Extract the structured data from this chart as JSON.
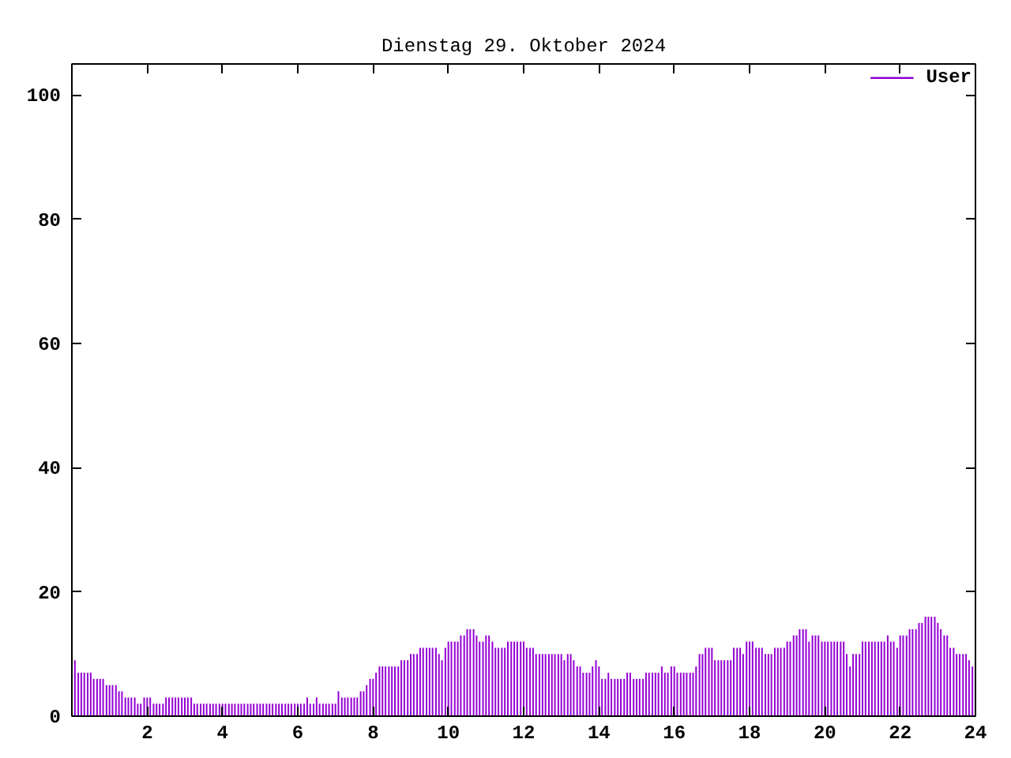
{
  "chart_data": {
    "type": "bar",
    "title": "Dienstag 29. Oktober 2024",
    "x": [
      0.08,
      0.17,
      0.25,
      0.33,
      0.42,
      0.5,
      0.58,
      0.67,
      0.75,
      0.83,
      0.92,
      1,
      1.08,
      1.17,
      1.25,
      1.33,
      1.42,
      1.5,
      1.58,
      1.67,
      1.75,
      1.83,
      1.92,
      2,
      2.08,
      2.17,
      2.25,
      2.33,
      2.42,
      2.5,
      2.58,
      2.67,
      2.75,
      2.83,
      2.92,
      3,
      3.08,
      3.17,
      3.25,
      3.33,
      3.42,
      3.5,
      3.58,
      3.67,
      3.75,
      3.83,
      3.92,
      4,
      4.08,
      4.17,
      4.25,
      4.33,
      4.42,
      4.5,
      4.58,
      4.67,
      4.75,
      4.83,
      4.92,
      5,
      5.08,
      5.17,
      5.25,
      5.33,
      5.42,
      5.5,
      5.58,
      5.67,
      5.75,
      5.83,
      5.92,
      6,
      6.08,
      6.17,
      6.25,
      6.33,
      6.42,
      6.5,
      6.58,
      6.67,
      6.75,
      6.83,
      6.92,
      7,
      7.08,
      7.17,
      7.25,
      7.33,
      7.42,
      7.5,
      7.58,
      7.67,
      7.75,
      7.83,
      7.92,
      8,
      8.08,
      8.17,
      8.25,
      8.33,
      8.42,
      8.5,
      8.58,
      8.67,
      8.75,
      8.83,
      8.92,
      9,
      9.08,
      9.17,
      9.25,
      9.33,
      9.42,
      9.5,
      9.58,
      9.67,
      9.75,
      9.83,
      9.92,
      10,
      10.08,
      10.17,
      10.25,
      10.33,
      10.42,
      10.5,
      10.58,
      10.67,
      10.75,
      10.83,
      10.92,
      11,
      11.08,
      11.17,
      11.25,
      11.33,
      11.42,
      11.5,
      11.58,
      11.67,
      11.75,
      11.83,
      11.92,
      12,
      12.08,
      12.17,
      12.25,
      12.33,
      12.42,
      12.5,
      12.58,
      12.67,
      12.75,
      12.83,
      12.92,
      13,
      13.08,
      13.17,
      13.25,
      13.33,
      13.42,
      13.5,
      13.58,
      13.67,
      13.75,
      13.83,
      13.92,
      14,
      14.08,
      14.17,
      14.25,
      14.33,
      14.42,
      14.5,
      14.58,
      14.67,
      14.75,
      14.83,
      14.92,
      15,
      15.08,
      15.17,
      15.25,
      15.33,
      15.42,
      15.5,
      15.58,
      15.67,
      15.75,
      15.83,
      15.92,
      16,
      16.08,
      16.17,
      16.25,
      16.33,
      16.42,
      16.5,
      16.58,
      16.67,
      16.75,
      16.83,
      16.92,
      17,
      17.08,
      17.17,
      17.25,
      17.33,
      17.42,
      17.5,
      17.58,
      17.67,
      17.75,
      17.83,
      17.92,
      18,
      18.08,
      18.17,
      18.25,
      18.33,
      18.42,
      18.5,
      18.58,
      18.67,
      18.75,
      18.83,
      18.92,
      19,
      19.08,
      19.17,
      19.25,
      19.33,
      19.42,
      19.5,
      19.58,
      19.67,
      19.75,
      19.83,
      19.92,
      20,
      20.08,
      20.17,
      20.25,
      20.33,
      20.42,
      20.5,
      20.58,
      20.67,
      20.75,
      20.83,
      20.92,
      21,
      21.08,
      21.17,
      21.25,
      21.33,
      21.42,
      21.5,
      21.58,
      21.67,
      21.75,
      21.83,
      21.92,
      22,
      22.08,
      22.17,
      22.25,
      22.33,
      22.42,
      22.5,
      22.58,
      22.67,
      22.75,
      22.83,
      22.92,
      23,
      23.08,
      23.17,
      23.25,
      23.33,
      23.42,
      23.5,
      23.58,
      23.67,
      23.75,
      23.83,
      23.92
    ],
    "series": [
      {
        "name": "User",
        "color": "#9400d3",
        "values": [
          9,
          7,
          7,
          7,
          7,
          7,
          6,
          6,
          6,
          6,
          5,
          5,
          5,
          5,
          4,
          4,
          3,
          3,
          3,
          3,
          2,
          2,
          3,
          3,
          3,
          2,
          2,
          2,
          2,
          3,
          3,
          3,
          3,
          3,
          3,
          3,
          3,
          3,
          2,
          2,
          2,
          2,
          2,
          2,
          2,
          2,
          2,
          2,
          2,
          2,
          2,
          2,
          2,
          2,
          2,
          2,
          2,
          2,
          2,
          2,
          2,
          2,
          2,
          2,
          2,
          2,
          2,
          2,
          2,
          2,
          2,
          2,
          2,
          2,
          3,
          2,
          2,
          3,
          2,
          2,
          2,
          2,
          2,
          2,
          4,
          3,
          3,
          3,
          3,
          3,
          3,
          4,
          4,
          5,
          6,
          6,
          7,
          8,
          8,
          8,
          8,
          8,
          8,
          8,
          9,
          9,
          9,
          10,
          10,
          10,
          11,
          11,
          11,
          11,
          11,
          11,
          10,
          9,
          11,
          12,
          12,
          12,
          12,
          13,
          13,
          14,
          14,
          14,
          13,
          12,
          12,
          13,
          13,
          12,
          11,
          11,
          11,
          11,
          12,
          12,
          12,
          12,
          12,
          12,
          11,
          11,
          11,
          10,
          10,
          10,
          10,
          10,
          10,
          10,
          10,
          10,
          9,
          10,
          10,
          9,
          8,
          8,
          7,
          7,
          7,
          8,
          9,
          8,
          6,
          6,
          7,
          6,
          6,
          6,
          6,
          6,
          7,
          7,
          6,
          6,
          6,
          6,
          7,
          7,
          7,
          7,
          7,
          8,
          7,
          7,
          8,
          8,
          7,
          7,
          7,
          7,
          7,
          7,
          8,
          10,
          10,
          11,
          11,
          11,
          9,
          9,
          9,
          9,
          9,
          9,
          11,
          11,
          11,
          10,
          12,
          12,
          12,
          11,
          11,
          11,
          10,
          10,
          10,
          11,
          11,
          11,
          11,
          12,
          12,
          13,
          13,
          14,
          14,
          14,
          12,
          13,
          13,
          13,
          12,
          12,
          12,
          12,
          12,
          12,
          12,
          12,
          10,
          8,
          10,
          10,
          10,
          12,
          12,
          12,
          12,
          12,
          12,
          12,
          12,
          13,
          12,
          12,
          11,
          13,
          13,
          13,
          14,
          14,
          14,
          15,
          15,
          16,
          16,
          16,
          16,
          15,
          14,
          13,
          13,
          11,
          11,
          10,
          10,
          10,
          10,
          9,
          8
        ]
      }
    ],
    "xlim": [
      0,
      24
    ],
    "xticks": [
      2,
      4,
      6,
      8,
      10,
      12,
      14,
      16,
      18,
      20,
      22,
      24
    ],
    "ylim": [
      0,
      105
    ],
    "yticks": [
      0,
      20,
      40,
      60,
      80,
      100
    ],
    "grid": false,
    "legend": "top right"
  }
}
